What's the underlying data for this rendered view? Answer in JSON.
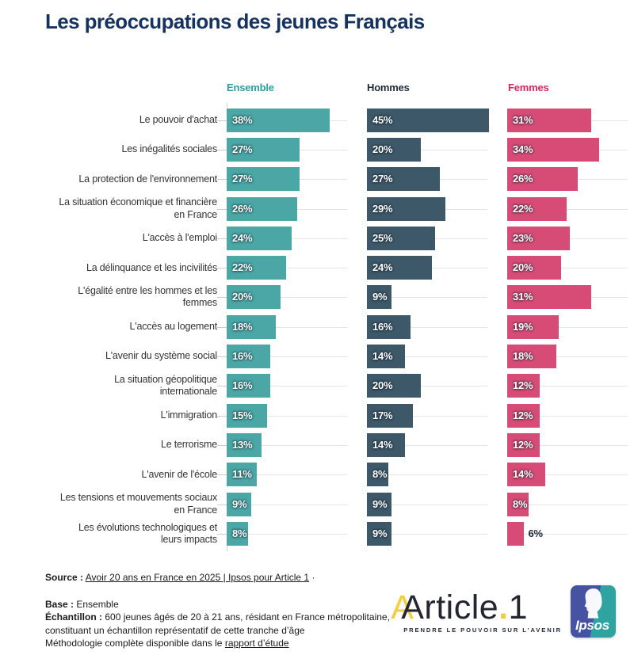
{
  "title": "Les préoccupations des jeunes Français",
  "colors": {
    "title": "#16325F",
    "headers": [
      "#2F9E9E",
      "#1F2B38",
      "#D2295C"
    ],
    "gridline": "#e4e4e4",
    "label_text": "#333333",
    "outside_value_text": "#1d2733"
  },
  "chart_data": {
    "type": "bar",
    "orientation": "horizontal",
    "unit": "%",
    "xlim": [
      0,
      45
    ],
    "grid": "row-lines",
    "legend_position": "top",
    "title": "Les préoccupations des jeunes Français",
    "categories": [
      "Le pouvoir d'achat",
      "Les inégalités sociales",
      "La protection de l'environnement",
      "La situation économique et financière\nen France",
      "L'accès à l'emploi",
      "La délinquance et les incivilités",
      "L'égalité entre les hommes et les\nfemmes",
      "L'accès au logement",
      "L'avenir du système social",
      "La situation géopolitique\ninternationale",
      "L'immigration",
      "Le terrorisme",
      "L'avenir de l'école",
      "Les tensions et mouvements sociaux\nen France",
      "Les évolutions technologiques et\nleurs impacts"
    ],
    "series": [
      {
        "name": "Ensemble",
        "color": "#4BA6A6",
        "values": [
          38,
          27,
          27,
          26,
          24,
          22,
          20,
          18,
          16,
          16,
          15,
          13,
          11,
          9,
          8
        ]
      },
      {
        "name": "Hommes",
        "color": "#3D5869",
        "values": [
          45,
          20,
          27,
          29,
          25,
          24,
          9,
          16,
          14,
          20,
          17,
          14,
          8,
          9,
          9
        ]
      },
      {
        "name": "Femmes",
        "color": "#D64C77",
        "values": [
          31,
          34,
          26,
          22,
          23,
          20,
          31,
          19,
          18,
          12,
          12,
          12,
          14,
          8,
          6
        ]
      }
    ]
  },
  "footer": {
    "source_label": "Source :",
    "source_link": "Avoir 20 ans en France en 2025 | Ipsos pour Article 1",
    "source_suffix": "·",
    "base_label": "Base :",
    "base_value": "Ensemble",
    "sample_label": "Échantillon :",
    "sample_text": "600 jeunes âgés de 20 à 21 ans, résidant en France métropolitaine,\nconstituant un échantillon représentatif de cette tranche d’âge",
    "methodology_text": "Méthodologie complète disponible dans le",
    "methodology_link": "rapport d’étude"
  },
  "logos": {
    "article1_word": "rticle",
    "article1_a": "A",
    "article1_dot": ".",
    "article1_one": "1",
    "article1_tagline": "PRENDRE LE POUVOIR SUR L'AVENIR",
    "ipsos_text": "Ipsos"
  }
}
